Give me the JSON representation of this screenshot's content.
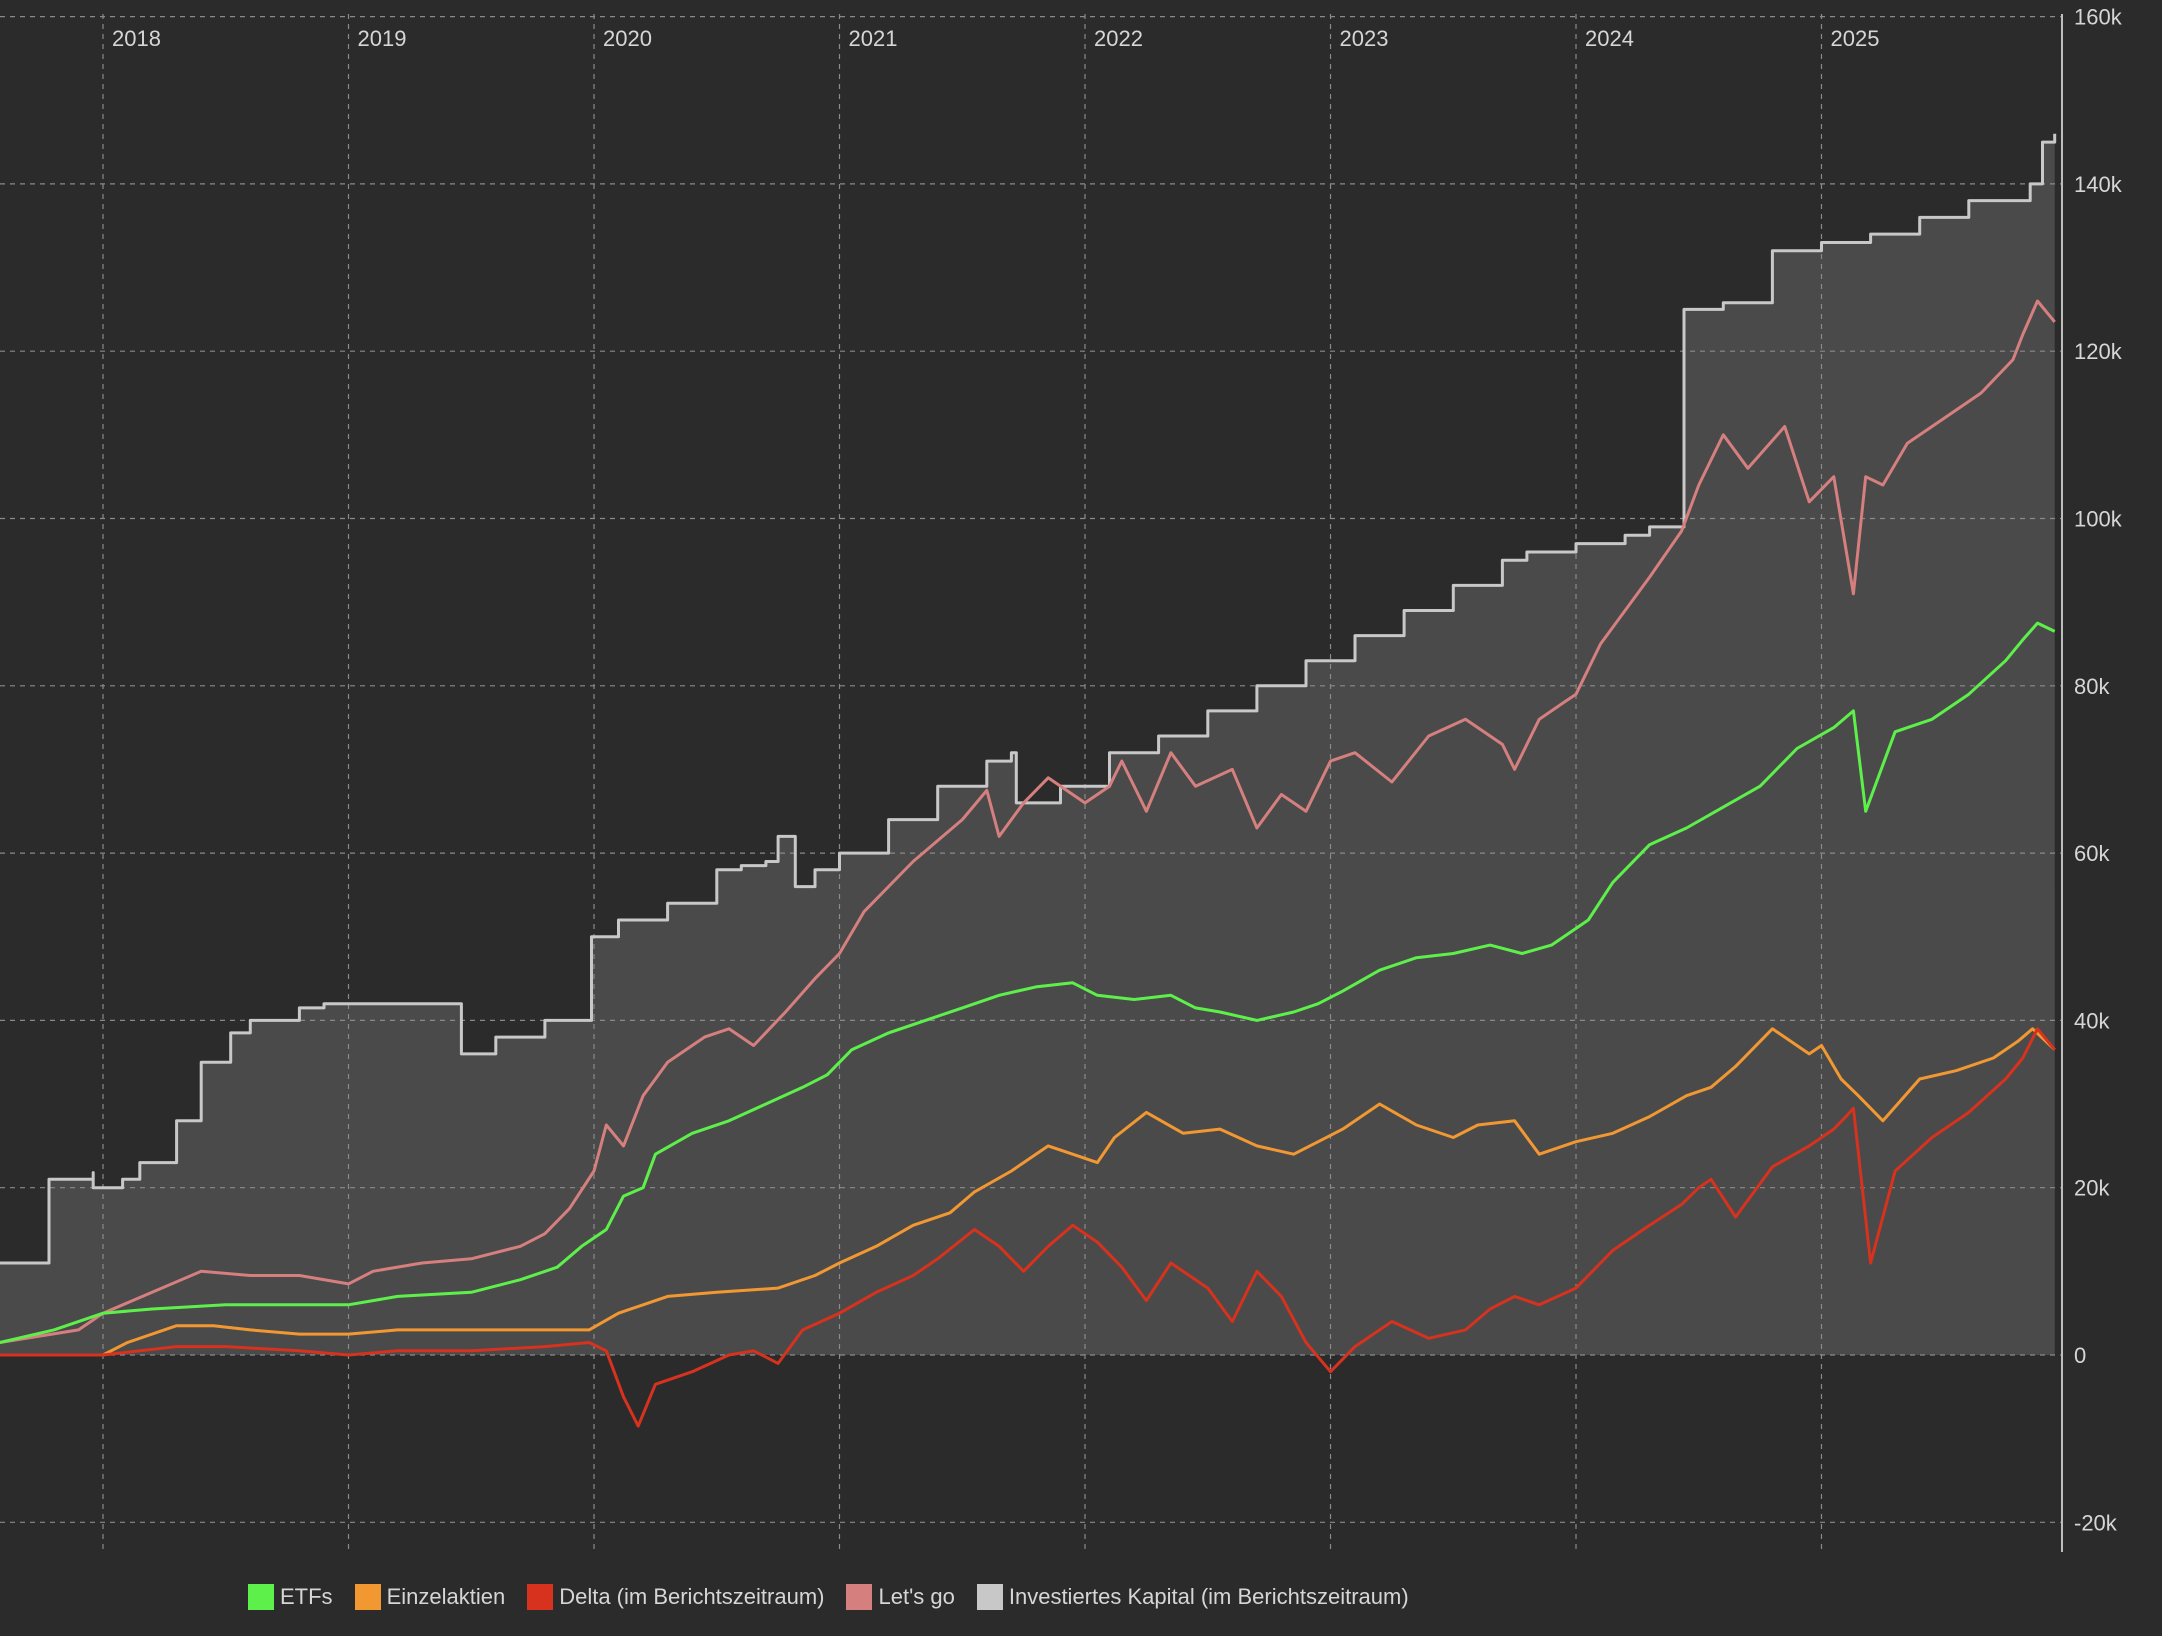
{
  "chart_data": {
    "type": "line",
    "x_tick_labels": [
      "2018",
      "2019",
      "2020",
      "2021",
      "2022",
      "2023",
      "2024",
      "2025"
    ],
    "x_ticks": [
      2018,
      2019,
      2020,
      2021,
      2022,
      2023,
      2024,
      2025
    ],
    "xlim": [
      2017.58,
      2026.0
    ],
    "ylim": [
      -20000,
      160000
    ],
    "y_ticks": [
      -20000,
      0,
      20000,
      40000,
      60000,
      80000,
      100000,
      120000,
      140000,
      160000
    ],
    "y_tick_labels": [
      "-20k",
      "0",
      "20k",
      "40k",
      "60k",
      "80k",
      "100k",
      "120k",
      "140k",
      "160k"
    ],
    "y_axis_position": "right",
    "grid": true,
    "legend_position": "bottom",
    "colors": {
      "background": "#2b2b2b",
      "grid": "#8a8a8a",
      "area_fill": "#4a4a4a",
      "axis_text": "#d6d6d6"
    },
    "series": [
      {
        "name": "Investiertes Kapital (im Berichtszeitraum)",
        "color": "#c8c8c8",
        "fill_area": true,
        "step": true,
        "x": [
          2017.58,
          2017.78,
          2017.78,
          2017.96,
          2017.96,
          2018.08,
          2018.15,
          2018.3,
          2018.4,
          2018.52,
          2018.52,
          2018.6,
          2018.8,
          2018.9,
          2019.0,
          2019.15,
          2019.25,
          2019.46,
          2019.46,
          2019.6,
          2019.8,
          2019.99,
          2019.99,
          2020.1,
          2020.3,
          2020.5,
          2020.6,
          2020.7,
          2020.75,
          2020.82,
          2020.9,
          2021.0,
          2021.2,
          2021.4,
          2021.6,
          2021.7,
          2021.72,
          2021.9,
          2022.1,
          2022.3,
          2022.5,
          2022.7,
          2022.9,
          2023.1,
          2023.3,
          2023.5,
          2023.7,
          2023.8,
          2024.0,
          2024.2,
          2024.3,
          2024.44,
          2024.44,
          2024.6,
          2024.8,
          2024.8,
          2025.0,
          2025.2,
          2025.4,
          2025.6,
          2025.85,
          2025.9,
          2025.95
        ],
        "values": [
          11000,
          11000,
          21000,
          21800,
          20000,
          21000,
          23000,
          28000,
          35000,
          37500,
          38500,
          40000,
          41500,
          42000,
          42000,
          42000,
          42000,
          42000,
          36000,
          38000,
          40000,
          41500,
          50000,
          52000,
          54000,
          58000,
          58500,
          59000,
          62000,
          56000,
          58000,
          60000,
          64000,
          68000,
          71000,
          72000,
          66000,
          68000,
          72000,
          74000,
          77000,
          80000,
          83000,
          86000,
          89000,
          92000,
          95000,
          96000,
          97000,
          98000,
          99000,
          100000,
          125000,
          125800,
          126000,
          132000,
          133000,
          134000,
          136000,
          138000,
          140000,
          145000,
          146000
        ]
      },
      {
        "name": "Let's go",
        "color": "#d67f7f",
        "x": [
          2017.58,
          2017.9,
          2018.0,
          2018.2,
          2018.4,
          2018.6,
          2018.8,
          2019.0,
          2019.1,
          2019.3,
          2019.5,
          2019.7,
          2019.8,
          2019.9,
          2020.0,
          2020.05,
          2020.12,
          2020.2,
          2020.25,
          2020.3,
          2020.45,
          2020.55,
          2020.65,
          2020.78,
          2020.9,
          2021.0,
          2021.1,
          2021.3,
          2021.5,
          2021.6,
          2021.65,
          2021.75,
          2021.85,
          2021.95,
          2022.0,
          2022.1,
          2022.15,
          2022.25,
          2022.35,
          2022.45,
          2022.6,
          2022.7,
          2022.8,
          2022.9,
          2023.0,
          2023.1,
          2023.25,
          2023.4,
          2023.55,
          2023.7,
          2023.75,
          2023.85,
          2023.95,
          2024.0,
          2024.1,
          2024.2,
          2024.3,
          2024.43,
          2024.5,
          2024.6,
          2024.7,
          2024.85,
          2024.95,
          2025.05,
          2025.13,
          2025.18,
          2025.25,
          2025.35,
          2025.5,
          2025.65,
          2025.78,
          2025.82,
          2025.88,
          2025.95
        ],
        "values": [
          1500,
          3000,
          5000,
          7500,
          10000,
          9500,
          9500,
          8500,
          10000,
          11000,
          11500,
          13000,
          14500,
          17500,
          22000,
          27500,
          25000,
          31000,
          33000,
          35000,
          38000,
          39000,
          37000,
          41000,
          45000,
          48000,
          53000,
          59000,
          64000,
          67500,
          62000,
          66000,
          69000,
          67000,
          66000,
          68000,
          71000,
          65000,
          72000,
          68000,
          70000,
          63000,
          67000,
          65000,
          71000,
          72000,
          68500,
          74000,
          76000,
          73000,
          70000,
          76000,
          78000,
          79000,
          85000,
          89000,
          93000,
          98500,
          104000,
          110000,
          106000,
          111000,
          102000,
          105000,
          91000,
          105000,
          104000,
          109000,
          112000,
          115000,
          119000,
          122000,
          126000,
          123500
        ]
      },
      {
        "name": "ETFs",
        "color": "#5df04a",
        "x": [
          2017.58,
          2017.8,
          2018.0,
          2018.2,
          2018.5,
          2018.8,
          2019.0,
          2019.2,
          2019.5,
          2019.7,
          2019.85,
          2019.95,
          2020.05,
          2020.12,
          2020.2,
          2020.25,
          2020.4,
          2020.55,
          2020.7,
          2020.85,
          2020.95,
          2021.05,
          2021.2,
          2021.35,
          2021.5,
          2021.65,
          2021.8,
          2021.95,
          2022.05,
          2022.2,
          2022.35,
          2022.45,
          2022.55,
          2022.7,
          2022.85,
          2022.95,
          2023.05,
          2023.2,
          2023.35,
          2023.5,
          2023.65,
          2023.78,
          2023.9,
          2024.05,
          2024.15,
          2024.3,
          2024.45,
          2024.6,
          2024.75,
          2024.9,
          2025.05,
          2025.13,
          2025.18,
          2025.3,
          2025.45,
          2025.6,
          2025.75,
          2025.82,
          2025.88,
          2025.95
        ],
        "values": [
          1500,
          3000,
          5000,
          5500,
          6000,
          6000,
          6000,
          7000,
          7500,
          9000,
          10500,
          13000,
          15000,
          19000,
          20000,
          24000,
          26500,
          28000,
          30000,
          32000,
          33500,
          36500,
          38500,
          40000,
          41500,
          43000,
          44000,
          44500,
          43000,
          42500,
          43000,
          41500,
          41000,
          40000,
          41000,
          42000,
          43500,
          46000,
          47500,
          48000,
          49000,
          48000,
          49000,
          52000,
          56500,
          61000,
          63000,
          65500,
          68000,
          72500,
          75000,
          77000,
          65000,
          74500,
          76000,
          79000,
          83000,
          85500,
          87500,
          86500
        ]
      },
      {
        "name": "Einzelaktien",
        "color": "#f29832",
        "x": [
          2017.58,
          2018.0,
          2018.1,
          2018.3,
          2018.45,
          2018.6,
          2018.8,
          2019.0,
          2019.2,
          2019.5,
          2019.8,
          2019.98,
          2020.1,
          2020.2,
          2020.3,
          2020.5,
          2020.75,
          2020.9,
          2021.0,
          2021.15,
          2021.3,
          2021.45,
          2021.55,
          2021.7,
          2021.85,
          2021.95,
          2022.05,
          2022.12,
          2022.25,
          2022.4,
          2022.55,
          2022.7,
          2022.85,
          2022.95,
          2023.05,
          2023.2,
          2023.35,
          2023.5,
          2023.6,
          2023.75,
          2023.85,
          2024.0,
          2024.15,
          2024.3,
          2024.45,
          2024.55,
          2024.65,
          2024.8,
          2024.95,
          2025.0,
          2025.08,
          2025.15,
          2025.25,
          2025.4,
          2025.55,
          2025.7,
          2025.8,
          2025.86,
          2025.95
        ],
        "values": [
          0,
          0,
          1500,
          3500,
          3500,
          3000,
          2500,
          2500,
          3000,
          3000,
          3000,
          3000,
          5000,
          6000,
          7000,
          7500,
          8000,
          9500,
          11000,
          13000,
          15500,
          17000,
          19500,
          22000,
          25000,
          24000,
          23000,
          26000,
          29000,
          26500,
          27000,
          25000,
          24000,
          25500,
          27000,
          30000,
          27500,
          26000,
          27500,
          28000,
          24000,
          25500,
          26500,
          28500,
          31000,
          32000,
          34500,
          39000,
          36000,
          37000,
          33000,
          31000,
          28000,
          33000,
          34000,
          35500,
          37500,
          39000,
          36500
        ]
      },
      {
        "name": "Delta (im Berichtszeitraum)",
        "color": "#d6321e",
        "x": [
          2017.58,
          2018.0,
          2018.3,
          2018.5,
          2018.8,
          2019.0,
          2019.2,
          2019.5,
          2019.8,
          2019.98,
          2020.05,
          2020.12,
          2020.18,
          2020.25,
          2020.4,
          2020.55,
          2020.65,
          2020.75,
          2020.85,
          2021.0,
          2021.15,
          2021.3,
          2021.4,
          2021.55,
          2021.65,
          2021.75,
          2021.85,
          2021.95,
          2022.05,
          2022.15,
          2022.25,
          2022.35,
          2022.5,
          2022.6,
          2022.7,
          2022.8,
          2022.9,
          2023.0,
          2023.1,
          2023.25,
          2023.4,
          2023.55,
          2023.65,
          2023.75,
          2023.85,
          2024.0,
          2024.15,
          2024.3,
          2024.43,
          2024.5,
          2024.55,
          2024.65,
          2024.8,
          2024.95,
          2025.05,
          2025.1,
          2025.13,
          2025.2,
          2025.3,
          2025.45,
          2025.6,
          2025.75,
          2025.82,
          2025.88,
          2025.95
        ],
        "values": [
          0,
          0,
          1000,
          1000,
          500,
          0,
          500,
          500,
          1000,
          1500,
          500,
          -5000,
          -8500,
          -3500,
          -2000,
          0,
          500,
          -1000,
          3000,
          5000,
          7500,
          9500,
          11500,
          15000,
          13000,
          10000,
          13000,
          15500,
          13500,
          10500,
          6500,
          11000,
          8000,
          4000,
          10000,
          7000,
          1500,
          -2000,
          1000,
          4000,
          2000,
          3000,
          5500,
          7000,
          6000,
          8000,
          12500,
          15500,
          18000,
          20000,
          21000,
          16500,
          22500,
          25000,
          27000,
          28500,
          29500,
          11000,
          22000,
          26000,
          29000,
          33000,
          35500,
          39000,
          36500
        ]
      }
    ]
  },
  "legend": {
    "items": [
      {
        "label": "ETFs",
        "color": "#5df04a"
      },
      {
        "label": "Einzelaktien",
        "color": "#f29832"
      },
      {
        "label": "Delta (im Berichtszeitraum)",
        "color": "#d6321e"
      },
      {
        "label": "Let's go",
        "color": "#d67f7f"
      },
      {
        "label": "Investiertes Kapital (im Berichtszeitraum)",
        "color": "#c8c8c8"
      }
    ]
  }
}
